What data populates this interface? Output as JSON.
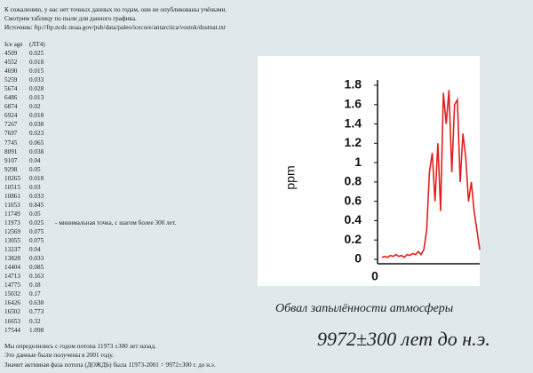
{
  "intro": [
    "К сожалению, у нас нет точных данных по годам, они не опубликованы учёными.",
    "Смотрим таблицу по пыли для данного графика.",
    "Источник: ftp://ftp.ncdc.noaa.gov/pub/data/paleo/icecore/antarctica/vostok/dustnat.txt"
  ],
  "table": {
    "header": [
      "Ice age",
      "(ЛТ4)"
    ],
    "rows": [
      [
        4509,
        0.025
      ],
      [
        4552,
        0.018
      ],
      [
        4690,
        0.015
      ],
      [
        5259,
        0.033
      ],
      [
        5674,
        0.028
      ],
      [
        6486,
        0.013
      ],
      [
        6874,
        0.02
      ],
      [
        6924,
        0.018
      ],
      [
        7267,
        0.038
      ],
      [
        7697,
        0.023
      ],
      [
        7745,
        0.065
      ],
      [
        8091,
        0.038
      ],
      [
        9107,
        0.04
      ],
      [
        9298,
        0.05
      ],
      [
        10265,
        0.018
      ],
      [
        10515,
        0.03
      ],
      [
        10861,
        0.033
      ],
      [
        11053,
        0.845
      ],
      [
        11749,
        0.05
      ],
      [
        11973,
        0.025,
        "- минимальная точка, с шагом более 300 лет."
      ],
      [
        12569,
        0.075
      ],
      [
        13055,
        0.075
      ],
      [
        13237,
        0.04
      ],
      [
        13828,
        0.033
      ],
      [
        14404,
        0.085
      ],
      [
        14713,
        0.163
      ],
      [
        14775,
        0.18
      ],
      [
        15032,
        0.17
      ],
      [
        16426,
        0.638
      ],
      [
        16502,
        0.773
      ],
      [
        16653,
        0.32
      ],
      [
        17544,
        1.098
      ]
    ]
  },
  "footer": [
    "Мы определились с годом потопа 11973 ±300 лет назад.",
    "Это данные были получены в 2001 году.",
    "Значит активная фаза потопа (ДОЖДЬ) была 11973-2001 = 9972±300 г. до н.э."
  ],
  "figure": {
    "type": "line",
    "ylabel": "ppm",
    "xtick": "0",
    "color": "#e02020",
    "ylim": [
      0,
      1.8
    ],
    "yticks": [
      0,
      0.2,
      0.4,
      0.6,
      0.8,
      1,
      1.2,
      1.4,
      1.6,
      1.8
    ],
    "values": [
      0.02,
      0.03,
      0.02,
      0.04,
      0.03,
      0.05,
      0.03,
      0.04,
      0.02,
      0.05,
      0.04,
      0.06,
      0.05,
      0.08,
      0.05,
      0.1,
      0.3,
      0.9,
      1.1,
      0.6,
      1.2,
      0.5,
      1.72,
      1.4,
      1.75,
      0.9,
      1.6,
      1.65,
      0.8,
      1.3,
      1.05,
      0.6,
      0.8,
      0.5,
      0.3,
      0.1
    ]
  },
  "caption": "Обвал запылённости атмосферы",
  "headline": "9972±300 лет до н.э."
}
